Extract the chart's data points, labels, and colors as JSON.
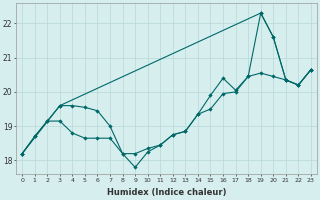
{
  "xlabel": "Humidex (Indice chaleur)",
  "bg_color": "#d6eeee",
  "grid_color": "#b8d8d8",
  "line_color": "#006868",
  "xlim": [
    -0.5,
    23.5
  ],
  "ylim": [
    17.6,
    22.6
  ],
  "yticks": [
    18,
    19,
    20,
    21,
    22
  ],
  "xticks": [
    0,
    1,
    2,
    3,
    4,
    5,
    6,
    7,
    8,
    9,
    10,
    11,
    12,
    13,
    14,
    15,
    16,
    17,
    18,
    19,
    20,
    21,
    22,
    23
  ],
  "line1_x": [
    0,
    1,
    2,
    3,
    4,
    5,
    6,
    7,
    8,
    9,
    10,
    11,
    12,
    13,
    14,
    15,
    16,
    17,
    18,
    19,
    20,
    21,
    22,
    23
  ],
  "line1_y": [
    18.2,
    18.7,
    19.15,
    19.15,
    18.8,
    18.65,
    18.65,
    18.65,
    18.2,
    18.2,
    18.35,
    18.45,
    18.75,
    18.85,
    19.35,
    19.5,
    19.95,
    20.0,
    20.45,
    20.55,
    20.45,
    20.35,
    20.2,
    20.65
  ],
  "line2_x": [
    0,
    1,
    2,
    3,
    4,
    5,
    6,
    7,
    8,
    9,
    10,
    11,
    12,
    13,
    14,
    15,
    16,
    17,
    18,
    19,
    20,
    21,
    22,
    23
  ],
  "line2_y": [
    18.2,
    18.7,
    19.15,
    19.6,
    19.6,
    19.55,
    19.45,
    19.0,
    18.2,
    17.8,
    18.25,
    18.45,
    18.75,
    18.85,
    19.35,
    19.9,
    20.4,
    20.05,
    20.45,
    22.3,
    21.6,
    20.35,
    20.2,
    20.65
  ],
  "line3_x": [
    0,
    3,
    19,
    20,
    21,
    22,
    23
  ],
  "line3_y": [
    18.2,
    19.6,
    22.3,
    21.6,
    20.35,
    20.2,
    20.65
  ]
}
